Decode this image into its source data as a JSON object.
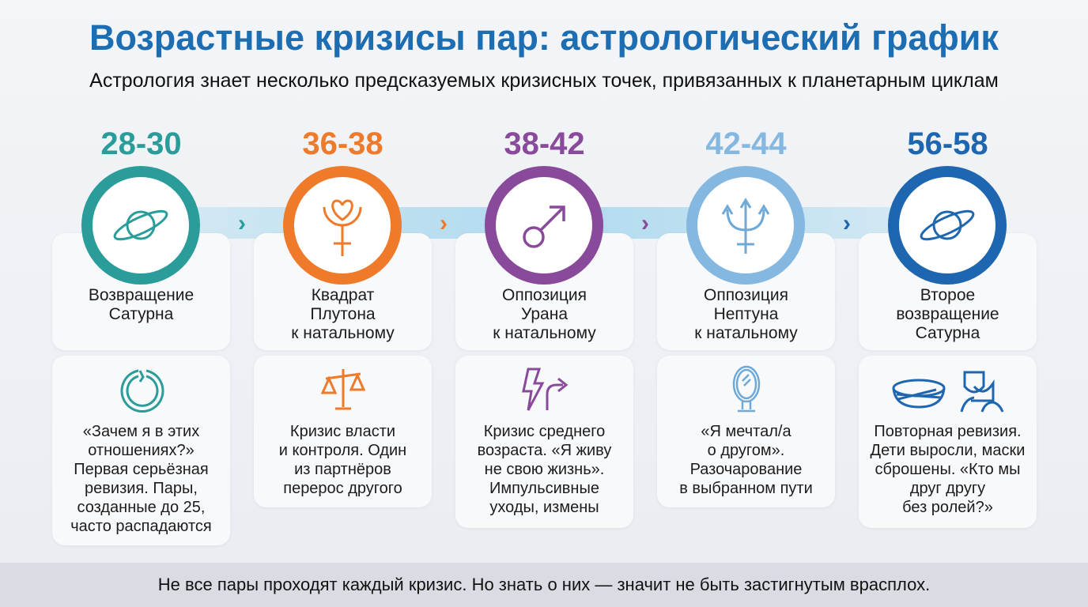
{
  "title": "Возрастные кризисы пар: астрологический график",
  "subtitle": "Астрология знает несколько предсказуемых кризисных точек, привязанных к планетарным циклам",
  "colors": {
    "teal": "#2a9d9a",
    "orange": "#ee7a2a",
    "purple": "#8a4a9c",
    "lightblue": "#85b8e0",
    "blue": "#1e67b0"
  },
  "stages": [
    {
      "age": "28-30",
      "planet": "Возвращение\nСатурна",
      "icon": "saturn-icon",
      "detail_icon": "broken-ring-icon",
      "detail": "«Зачем я в этих\nотношениях?»\nПервая серьёзная\nревизия. Пары,\nсозданные до 25,\nчасто распадаются"
    },
    {
      "age": "36-38",
      "planet": "Квадрат\nПлутона\nк натальному",
      "icon": "pluto-icon",
      "detail_icon": "scales-icon",
      "detail": "Кризис власти\nи контроля. Один\nиз партнёров\nперерос другого"
    },
    {
      "age": "38-42",
      "planet": "Оппозиция\nУрана\nк натальному",
      "icon": "uranus-icon",
      "detail_icon": "lightning-turn-icon",
      "detail": "Кризис среднего\nвозраста. «Я живу\nне свою жизнь».\nИмпульсивные\nуходы, измены"
    },
    {
      "age": "42-44",
      "planet": "Оппозиция\nНептуна\nк натальному",
      "icon": "neptune-icon",
      "detail_icon": "mirror-icon",
      "detail": "«Я мечтал/а\nо другом».\nРазочарование\nв выбранном пути"
    },
    {
      "age": "56-58",
      "planet": "Второе\nвозвращение\nСатурна",
      "icon": "saturn-icon",
      "detail_icon": "nest-masks-icon",
      "detail": "Повторная ревизия.\nДети выросли, маски\nсброшены. «Кто мы\nдруг другу\nбез ролей?»"
    }
  ],
  "footer": "Не все пары проходят каждый кризис. Но знать о них — значит не быть застигнутым врасплох."
}
